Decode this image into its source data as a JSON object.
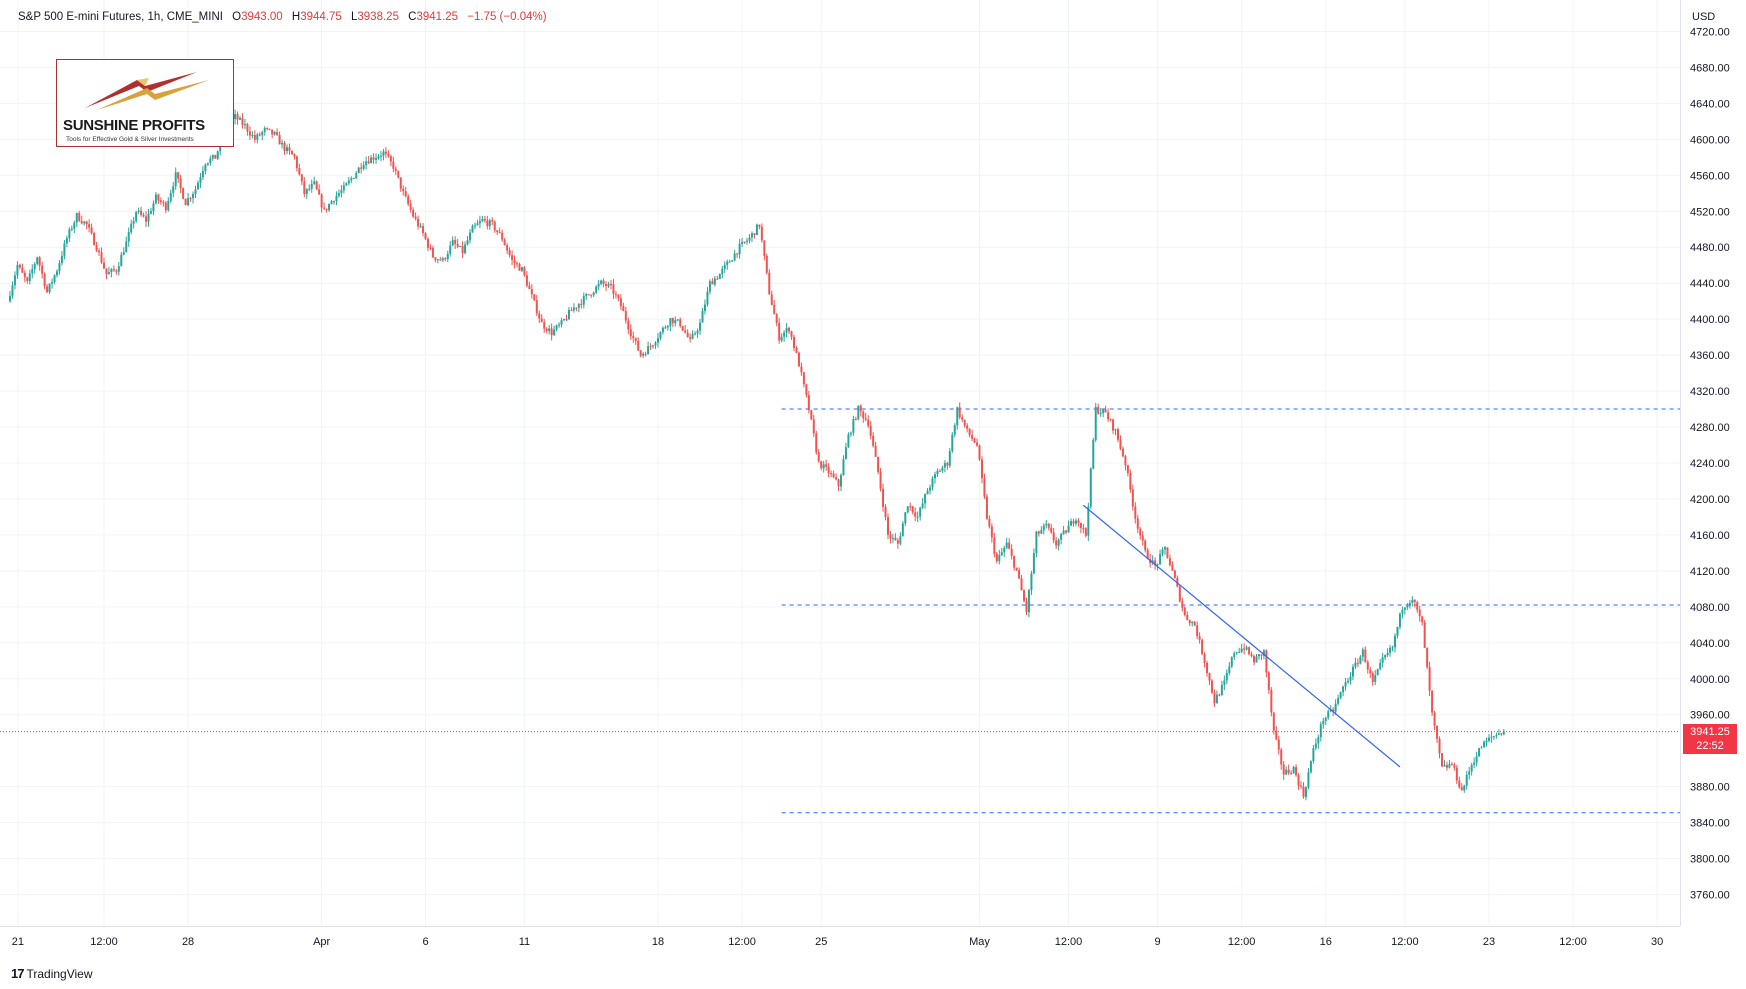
{
  "header": {
    "symbol": "S&P 500 E-mini Futures, 1h, CME_MINI",
    "open_label": "O",
    "open": "3943.00",
    "high_label": "H",
    "high": "3944.75",
    "low_label": "L",
    "low": "3938.25",
    "close_label": "C",
    "close": "3941.25",
    "change": "−1.75 (−0.04%)"
  },
  "currency": "USD",
  "logo": {
    "brand": "SUNSHINE PROFITS",
    "tagline": "Tools for Effective Gold & Silver Investments"
  },
  "price_badge": {
    "price": "3941.25",
    "countdown": "22:52"
  },
  "footer": {
    "brand": "TradingView",
    "mark": "17"
  },
  "colors": {
    "up": "#26a69a",
    "down": "#ef5350",
    "level_line": "#2962ff",
    "trend_line": "#2962ff",
    "last_price": "#f23645",
    "grid": "#f0f3fa"
  },
  "chart_data": {
    "type": "candlestick",
    "title": "S&P 500 E-mini Futures, 1h, CME_MINI",
    "ylim": [
      3725,
      4755
    ],
    "y_ticks": [
      "4720.00",
      "4680.00",
      "4640.00",
      "4600.00",
      "4560.00",
      "4520.00",
      "4480.00",
      "4440.00",
      "4400.00",
      "4360.00",
      "4320.00",
      "4280.00",
      "4240.00",
      "4200.00",
      "4160.00",
      "4120.00",
      "4080.00",
      "4040.00",
      "4000.00",
      "3960.00",
      "3880.00",
      "3840.00",
      "3800.00",
      "3760.00"
    ],
    "x_ticks": [
      {
        "label": "21",
        "t": 0.8
      },
      {
        "label": "12:00",
        "t": 9.5
      },
      {
        "label": "28",
        "t": 18
      },
      {
        "label": "Apr",
        "t": 31.5
      },
      {
        "label": "6",
        "t": 42
      },
      {
        "label": "11",
        "t": 52
      },
      {
        "label": "18",
        "t": 65.5
      },
      {
        "label": "12:00",
        "t": 74
      },
      {
        "label": "25",
        "t": 82
      },
      {
        "label": "May",
        "t": 98
      },
      {
        "label": "12:00",
        "t": 107
      },
      {
        "label": "9",
        "t": 116
      },
      {
        "label": "12:00",
        "t": 124.5
      },
      {
        "label": "16",
        "t": 133
      },
      {
        "label": "12:00",
        "t": 141
      },
      {
        "label": "23",
        "t": 149.5
      },
      {
        "label": "12:00",
        "t": 158
      },
      {
        "label": "30",
        "t": 166.5
      }
    ],
    "x_range": [
      0,
      168
    ],
    "price_path": [
      [
        0,
        4420
      ],
      [
        1,
        4460
      ],
      [
        2,
        4440
      ],
      [
        3,
        4470
      ],
      [
        4,
        4430
      ],
      [
        5,
        4455
      ],
      [
        6,
        4490
      ],
      [
        7,
        4515
      ],
      [
        8,
        4505
      ],
      [
        9,
        4480
      ],
      [
        10,
        4450
      ],
      [
        11,
        4455
      ],
      [
        12,
        4485
      ],
      [
        13,
        4520
      ],
      [
        14,
        4510
      ],
      [
        15,
        4535
      ],
      [
        16,
        4525
      ],
      [
        17,
        4560
      ],
      [
        18,
        4530
      ],
      [
        19,
        4545
      ],
      [
        20,
        4575
      ],
      [
        21,
        4580
      ],
      [
        22,
        4610
      ],
      [
        23,
        4625
      ],
      [
        24,
        4615
      ],
      [
        25,
        4600
      ],
      [
        26,
        4610
      ],
      [
        27,
        4605
      ],
      [
        28,
        4590
      ],
      [
        29,
        4580
      ],
      [
        30,
        4540
      ],
      [
        31,
        4550
      ],
      [
        32,
        4520
      ],
      [
        33,
        4535
      ],
      [
        34,
        4545
      ],
      [
        35,
        4560
      ],
      [
        36,
        4575
      ],
      [
        37,
        4580
      ],
      [
        38,
        4585
      ],
      [
        39,
        4570
      ],
      [
        40,
        4540
      ],
      [
        41,
        4515
      ],
      [
        42,
        4495
      ],
      [
        43,
        4470
      ],
      [
        44,
        4465
      ],
      [
        45,
        4485
      ],
      [
        46,
        4475
      ],
      [
        47,
        4500
      ],
      [
        48,
        4510
      ],
      [
        49,
        4505
      ],
      [
        50,
        4490
      ],
      [
        51,
        4465
      ],
      [
        52,
        4455
      ],
      [
        53,
        4425
      ],
      [
        54,
        4395
      ],
      [
        55,
        4385
      ],
      [
        56,
        4395
      ],
      [
        57,
        4410
      ],
      [
        58,
        4420
      ],
      [
        59,
        4430
      ],
      [
        60,
        4440
      ],
      [
        61,
        4435
      ],
      [
        62,
        4415
      ],
      [
        63,
        4385
      ],
      [
        64,
        4360
      ],
      [
        65,
        4370
      ],
      [
        66,
        4385
      ],
      [
        67,
        4400
      ],
      [
        68,
        4395
      ],
      [
        69,
        4375
      ],
      [
        70,
        4395
      ],
      [
        71,
        4440
      ],
      [
        72,
        4450
      ],
      [
        73,
        4465
      ],
      [
        74,
        4480
      ],
      [
        75,
        4490
      ],
      [
        76,
        4505
      ],
      [
        77,
        4430
      ],
      [
        78,
        4380
      ],
      [
        79,
        4390
      ],
      [
        80,
        4350
      ],
      [
        81,
        4300
      ],
      [
        82,
        4240
      ],
      [
        83,
        4230
      ],
      [
        84,
        4215
      ],
      [
        85,
        4270
      ],
      [
        86,
        4300
      ],
      [
        87,
        4285
      ],
      [
        88,
        4230
      ],
      [
        89,
        4160
      ],
      [
        90,
        4150
      ],
      [
        91,
        4195
      ],
      [
        92,
        4180
      ],
      [
        93,
        4210
      ],
      [
        94,
        4230
      ],
      [
        95,
        4240
      ],
      [
        96,
        4300
      ],
      [
        97,
        4275
      ],
      [
        98,
        4260
      ],
      [
        99,
        4180
      ],
      [
        100,
        4130
      ],
      [
        101,
        4150
      ],
      [
        102,
        4120
      ],
      [
        103,
        4075
      ],
      [
        104,
        4160
      ],
      [
        105,
        4170
      ],
      [
        106,
        4150
      ],
      [
        107,
        4165
      ],
      [
        108,
        4180
      ],
      [
        109,
        4160
      ],
      [
        110,
        4300
      ],
      [
        111,
        4295
      ],
      [
        112,
        4275
      ],
      [
        113,
        4240
      ],
      [
        114,
        4180
      ],
      [
        115,
        4140
      ],
      [
        116,
        4125
      ],
      [
        117,
        4145
      ],
      [
        118,
        4110
      ],
      [
        119,
        4070
      ],
      [
        120,
        4060
      ],
      [
        121,
        4020
      ],
      [
        122,
        3975
      ],
      [
        123,
        3995
      ],
      [
        124,
        4030
      ],
      [
        125,
        4035
      ],
      [
        126,
        4020
      ],
      [
        127,
        4030
      ],
      [
        128,
        3940
      ],
      [
        129,
        3895
      ],
      [
        130,
        3900
      ],
      [
        131,
        3870
      ],
      [
        132,
        3920
      ],
      [
        133,
        3955
      ],
      [
        134,
        3965
      ],
      [
        135,
        3990
      ],
      [
        136,
        4010
      ],
      [
        137,
        4030
      ],
      [
        138,
        3995
      ],
      [
        139,
        4020
      ],
      [
        140,
        4035
      ],
      [
        141,
        4080
      ],
      [
        142,
        4090
      ],
      [
        143,
        4060
      ],
      [
        144,
        3960
      ],
      [
        145,
        3900
      ],
      [
        146,
        3905
      ],
      [
        147,
        3875
      ],
      [
        148,
        3905
      ],
      [
        149,
        3925
      ],
      [
        150,
        3935
      ],
      [
        151,
        3941
      ]
    ],
    "horizontal_levels": [
      4300,
      4082,
      3851
    ],
    "level_start_t": 78,
    "trend_line": [
      [
        108.5,
        4193
      ],
      [
        140.5,
        3902
      ]
    ],
    "last_price": 3941.25
  }
}
